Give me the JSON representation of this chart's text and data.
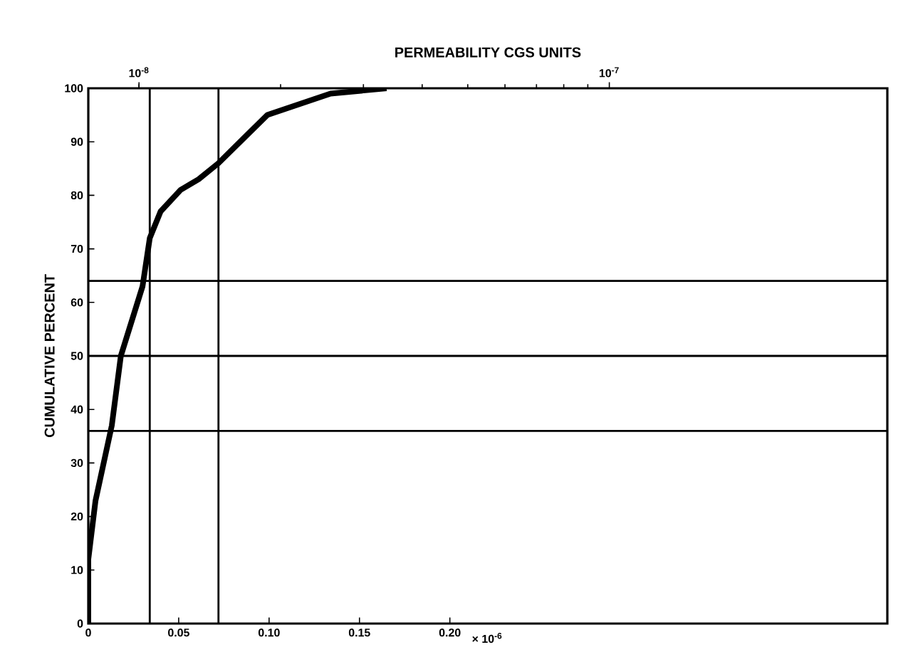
{
  "chart_data": {
    "type": "line",
    "x2label": "PERMEABILITY CGS UNITS",
    "ylabel": "CUMULATIVE PERCENT",
    "xlabel": "× 10$^{-6}$",
    "series": [
      {
        "color": "#000000",
        "x": [
          0,
          0,
          0.004,
          0.013,
          0.018,
          0.03,
          0.034,
          0.04,
          0.051,
          0.061,
          0.072,
          0.087,
          0.099,
          0.134,
          0.165
        ],
        "values": [
          0,
          12,
          23,
          37,
          50,
          63,
          72,
          77,
          81,
          83,
          86,
          91,
          95,
          99,
          100
        ]
      }
    ],
    "xlim": [
      0,
      0.442
    ],
    "xticks": [
      {
        "value": 0,
        "label": "0"
      },
      {
        "value": 0.05,
        "label": "0.05"
      },
      {
        "value": 0.1,
        "label": "0.10"
      },
      {
        "value": 0.15,
        "label": "0.15"
      },
      {
        "value": 0.2,
        "label": "0.20"
      }
    ],
    "ylim": [
      0,
      100
    ],
    "yticks": [
      0,
      10,
      20,
      30,
      40,
      50,
      60,
      70,
      80,
      90,
      100
    ],
    "x2lim": [
      7.8e-09,
      3.9e-07
    ],
    "x2ticks": [
      {
        "value": 1e-08,
        "label": "10$^{-8}$"
      },
      {
        "value": 1e-07,
        "label": "10$^{-7}$"
      }
    ],
    "log": "x2",
    "grid": false,
    "line_style": "solid",
    "ref_lines": [
      {
        "axis": "x",
        "value": 0.034
      },
      {
        "axis": "x",
        "value": 0.072
      },
      {
        "axis": "y",
        "value": 64
      },
      {
        "axis": "y",
        "value": 50
      },
      {
        "axis": "y",
        "value": 36
      }
    ]
  }
}
